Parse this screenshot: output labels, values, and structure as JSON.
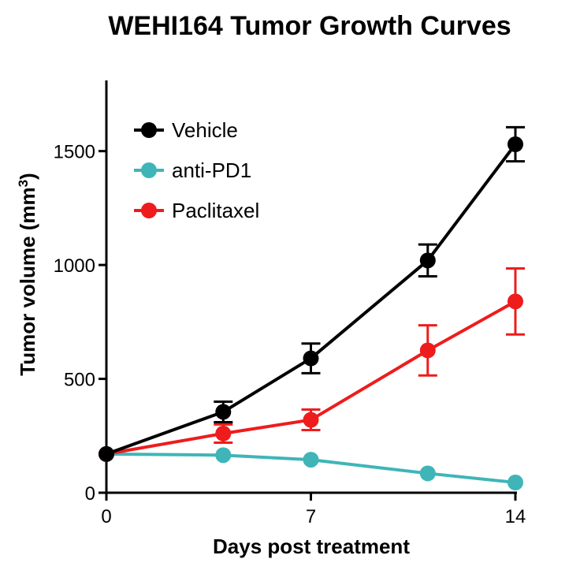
{
  "chart_data": {
    "type": "line",
    "title": "WEHI164 Tumor Growth Curves",
    "xlabel": "Days post treatment",
    "ylabel_main": "Tumor volume (mm",
    "ylabel_sup": "3",
    "ylabel_close": ")",
    "xlim": [
      0,
      14
    ],
    "ylim": [
      0,
      1800
    ],
    "xticks": [
      0,
      7,
      14
    ],
    "yticks": [
      0,
      500,
      1000,
      1500
    ],
    "legend_position": "top-left",
    "series": [
      {
        "name": "Vehicle",
        "color": "#000000",
        "x": [
          0,
          4,
          7,
          11,
          14
        ],
        "y": [
          170,
          355,
          590,
          1020,
          1530
        ],
        "err": [
          0,
          45,
          65,
          70,
          75
        ]
      },
      {
        "name": "anti-PD1",
        "color": "#3fb5b8",
        "x": [
          0,
          4,
          7,
          11,
          14
        ],
        "y": [
          170,
          165,
          145,
          85,
          45
        ],
        "err": [
          0,
          0,
          0,
          0,
          0
        ]
      },
      {
        "name": "Paclitaxel",
        "color": "#ee1c1c",
        "x": [
          0,
          4,
          7,
          11,
          14
        ],
        "y": [
          170,
          260,
          320,
          625,
          840
        ],
        "err": [
          0,
          40,
          45,
          110,
          145
        ]
      }
    ]
  }
}
